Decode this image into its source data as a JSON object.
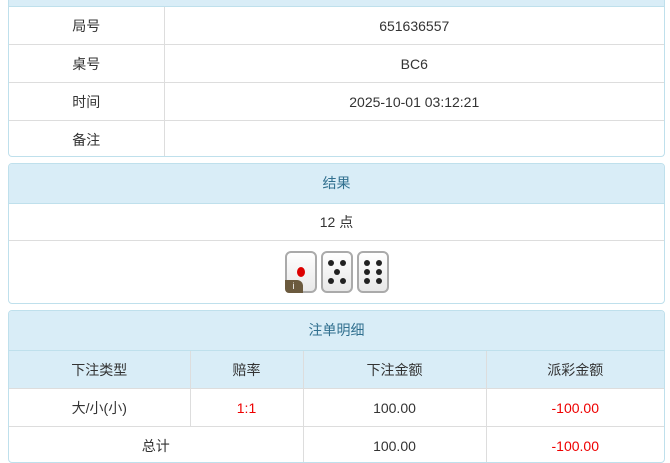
{
  "info": {
    "rows": [
      {
        "label": "局号",
        "value": "651636557"
      },
      {
        "label": "桌号",
        "value": "BC6"
      },
      {
        "label": "时间",
        "value": "2025-10-01 03:12:21"
      },
      {
        "label": "备注",
        "value": ""
      }
    ]
  },
  "result": {
    "title": "结果",
    "points": "12 点",
    "dice": [
      1,
      5,
      6
    ],
    "badge": "i"
  },
  "bets": {
    "title": "注单明细",
    "headers": [
      "下注类型",
      "赔率",
      "下注金额",
      "派彩金额"
    ],
    "rows": [
      {
        "type": "大/小(小)",
        "odds": "1:1",
        "amount": "100.00",
        "payout": "-100.00"
      }
    ],
    "total": {
      "label": "总计",
      "amount": "100.00",
      "payout": "-100.00"
    }
  },
  "colors": {
    "header_bg": "#d9edf7",
    "header_text": "#31708f",
    "negative": "#e00000"
  }
}
